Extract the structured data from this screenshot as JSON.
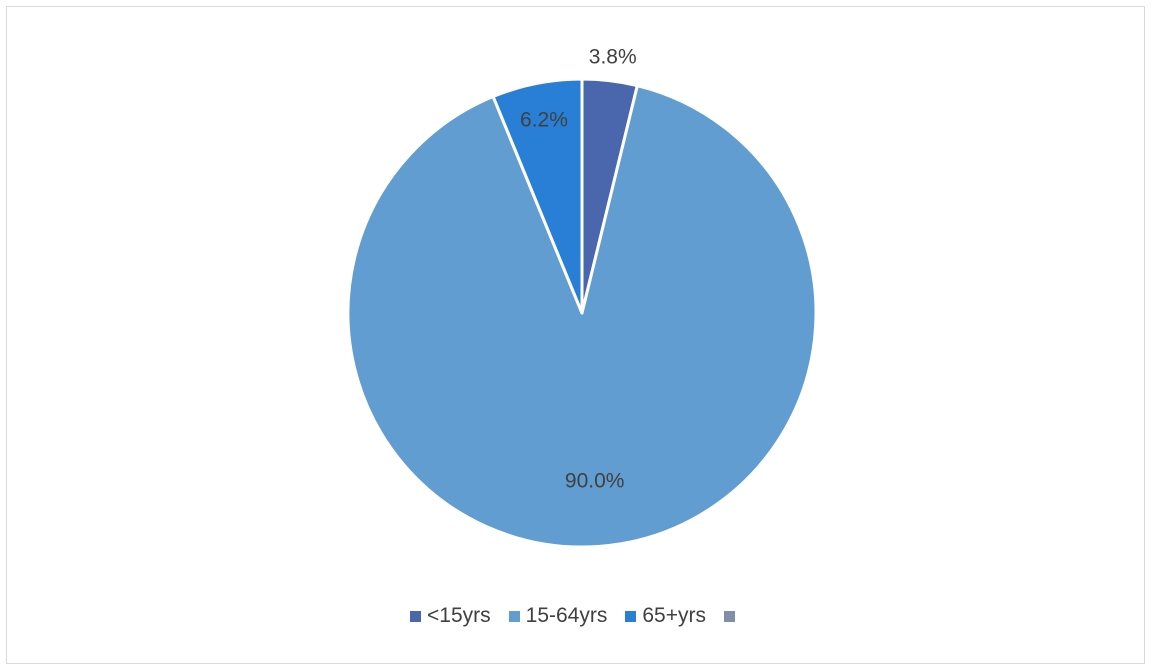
{
  "chart_data": {
    "type": "pie",
    "title": "",
    "categories": [
      "<15yrs",
      "15-64yrs",
      "65+yrs",
      ""
    ],
    "values": [
      3.8,
      90.0,
      6.2,
      0
    ],
    "labels": [
      "3.8%",
      "90.0%",
      "6.2%",
      ""
    ],
    "colors": [
      "#4a66ac",
      "#629dd1",
      "#297fd5",
      "#7f8fa9"
    ],
    "legend": "bottom",
    "start_angle_deg": 0,
    "direction": "clockwise"
  }
}
